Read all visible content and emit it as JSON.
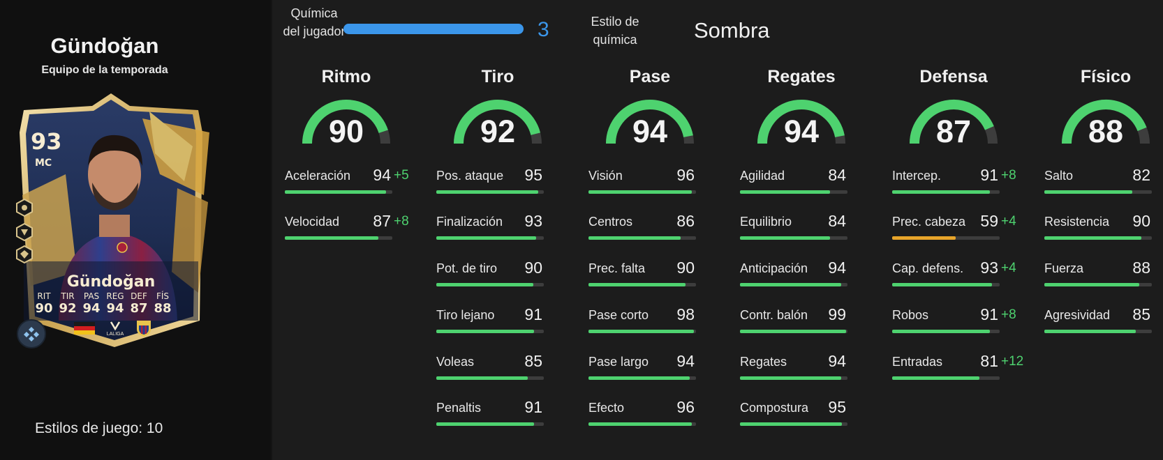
{
  "player": {
    "name": "Gündoğan",
    "subtitle": "Equipo de la temporada",
    "playstyles_label": "Estilos de juego: 10"
  },
  "card": {
    "rating": "93",
    "position": "MC",
    "name": "Gündoğan",
    "league": "LALIGA",
    "stats": [
      {
        "label": "RIT",
        "value": "90"
      },
      {
        "label": "TIR",
        "value": "92"
      },
      {
        "label": "PAS",
        "value": "94"
      },
      {
        "label": "REG",
        "value": "94"
      },
      {
        "label": "DEF",
        "value": "87"
      },
      {
        "label": "FÍS",
        "value": "88"
      }
    ],
    "icons": [
      "playstyle-icon",
      "playstyle-icon",
      "playstyle-icon",
      "evolution-icon",
      "germany-flag-icon",
      "laliga-logo-icon",
      "fc-barcelona-crest-icon"
    ]
  },
  "chemistry": {
    "label": "Química del jugador",
    "value": "3",
    "max": 3,
    "style_label": "Estilo de química",
    "style_value": "Sombra"
  },
  "colors": {
    "accent_blue": "#3b96ea",
    "gauge_green": "#4ed26f",
    "bar_green": "#4ed26f",
    "bar_orange": "#e8a52a",
    "boost_green": "#4ed26f"
  },
  "categories": [
    {
      "title": "Ritmo",
      "value": 90,
      "stats": [
        {
          "name": "Aceleración",
          "value": 94,
          "boost": "+5"
        },
        {
          "name": "Velocidad",
          "value": 87,
          "boost": "+8"
        }
      ]
    },
    {
      "title": "Tiro",
      "value": 92,
      "stats": [
        {
          "name": "Pos. ataque",
          "value": 95,
          "boost": ""
        },
        {
          "name": "Finalización",
          "value": 93,
          "boost": ""
        },
        {
          "name": "Pot. de tiro",
          "value": 90,
          "boost": ""
        },
        {
          "name": "Tiro lejano",
          "value": 91,
          "boost": ""
        },
        {
          "name": "Voleas",
          "value": 85,
          "boost": ""
        },
        {
          "name": "Penaltis",
          "value": 91,
          "boost": ""
        }
      ]
    },
    {
      "title": "Pase",
      "value": 94,
      "stats": [
        {
          "name": "Visión",
          "value": 96,
          "boost": ""
        },
        {
          "name": "Centros",
          "value": 86,
          "boost": ""
        },
        {
          "name": "Prec. falta",
          "value": 90,
          "boost": ""
        },
        {
          "name": "Pase corto",
          "value": 98,
          "boost": ""
        },
        {
          "name": "Pase largo",
          "value": 94,
          "boost": ""
        },
        {
          "name": "Efecto",
          "value": 96,
          "boost": ""
        }
      ]
    },
    {
      "title": "Regates",
      "value": 94,
      "stats": [
        {
          "name": "Agilidad",
          "value": 84,
          "boost": ""
        },
        {
          "name": "Equilibrio",
          "value": 84,
          "boost": ""
        },
        {
          "name": "Anticipación",
          "value": 94,
          "boost": ""
        },
        {
          "name": "Contr. balón",
          "value": 99,
          "boost": ""
        },
        {
          "name": "Regates",
          "value": 94,
          "boost": ""
        },
        {
          "name": "Compostura",
          "value": 95,
          "boost": ""
        }
      ]
    },
    {
      "title": "Defensa",
      "value": 87,
      "stats": [
        {
          "name": "Intercep.",
          "value": 91,
          "boost": "+8"
        },
        {
          "name": "Prec. cabeza",
          "value": 59,
          "boost": "+4",
          "bar_color": "#e8a52a"
        },
        {
          "name": "Cap. defens.",
          "value": 93,
          "boost": "+4"
        },
        {
          "name": "Robos",
          "value": 91,
          "boost": "+8"
        },
        {
          "name": "Entradas",
          "value": 81,
          "boost": "+12"
        }
      ]
    },
    {
      "title": "Físico",
      "value": 88,
      "stats": [
        {
          "name": "Salto",
          "value": 82,
          "boost": ""
        },
        {
          "name": "Resistencia",
          "value": 90,
          "boost": ""
        },
        {
          "name": "Fuerza",
          "value": 88,
          "boost": ""
        },
        {
          "name": "Agresividad",
          "value": 85,
          "boost": ""
        }
      ]
    }
  ]
}
